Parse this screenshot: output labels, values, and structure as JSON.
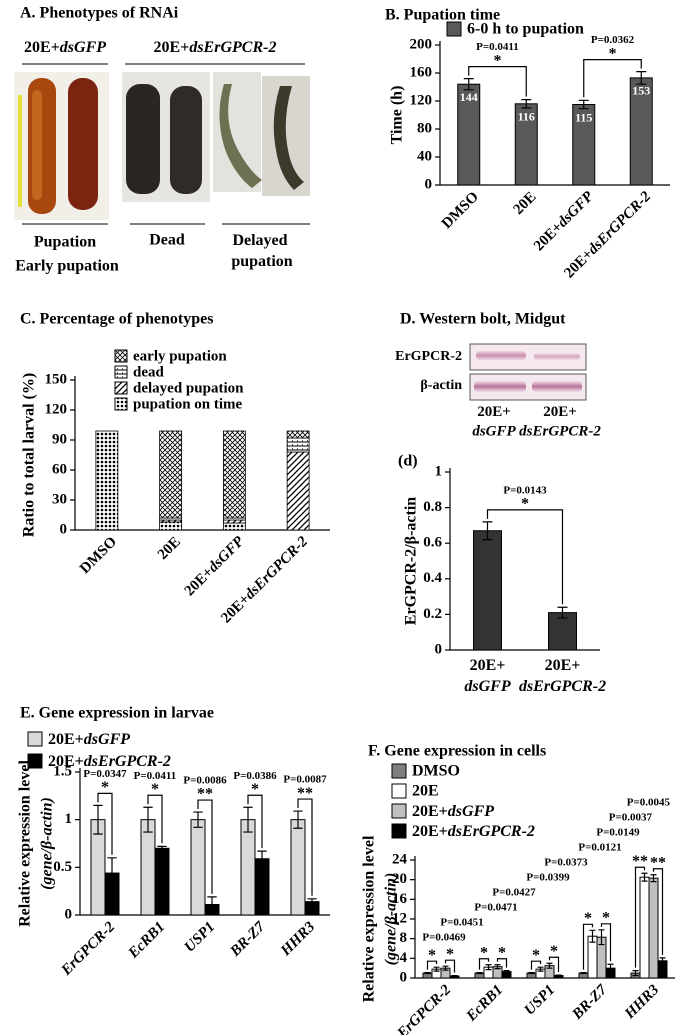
{
  "panel_a": {
    "title": "A. Phenotypes of RNAi",
    "groups": [
      "20E+dsGFP",
      "20E+dsErGPCR-2"
    ],
    "outcomes": [
      "Pupation",
      "Early pupation",
      "Dead",
      "Delayed pupation"
    ]
  },
  "panel_d_blot": {
    "title": "D. Western bolt, Midgut",
    "rows": [
      "ErGPCR-2",
      "β-actin"
    ],
    "lanes": [
      "20E+dsGFP",
      "20E+dsErGPCR-2"
    ]
  },
  "chart_data": [
    {
      "type": "bar",
      "title": "B. Pupation time",
      "ylabel": "Time (h)",
      "categories": [
        "DMSO",
        "20E",
        "20E+dsGFP",
        "20E+dsErGPCR-2"
      ],
      "series": [
        {
          "name": "6-0 h to pupation",
          "color": "#595959",
          "values": [
            144,
            116,
            115,
            153
          ],
          "errors": [
            8,
            6,
            6,
            9
          ]
        }
      ],
      "show_values": true,
      "ylim": [
        0,
        200
      ],
      "yticks": [
        0,
        40,
        80,
        120,
        160,
        200
      ],
      "comparisons": [
        {
          "p": "P=0.0411",
          "mark": "*"
        },
        {
          "p": "P=0.0362",
          "mark": "*"
        }
      ]
    },
    {
      "type": "stacked_bar",
      "title": "C. Percentage of phenotypes",
      "ylabel": "Ratio to total larval (%)",
      "categories": [
        "DMSO",
        "20E",
        "20E+dsGFP",
        "20E+dsErGPCR-2"
      ],
      "series": [
        {
          "name": "pupation on time",
          "pattern": "dots",
          "values": [
            99,
            8,
            7,
            0
          ]
        },
        {
          "name": "delayed pupation",
          "pattern": "diag",
          "values": [
            0,
            2,
            3,
            78
          ]
        },
        {
          "name": "dead",
          "pattern": "hlines",
          "values": [
            0,
            2,
            2,
            14
          ]
        },
        {
          "name": "early pupation",
          "pattern": "cross",
          "values": [
            0,
            87,
            87,
            7
          ]
        }
      ],
      "ylim": [
        0,
        150
      ],
      "yticks": [
        0,
        30,
        60,
        90,
        120,
        150
      ]
    },
    {
      "type": "bar",
      "title": "(d)",
      "ylabel": "ErGPCR-2/β-actin",
      "categories": [
        "20E+dsGFP",
        "20E+dsErGPCR-2"
      ],
      "series": [
        {
          "name": "ErGPCR-2/β-actin",
          "color": "#333333",
          "values": [
            0.67,
            0.21
          ],
          "errors": [
            0.05,
            0.03
          ]
        }
      ],
      "ylim": [
        0,
        1
      ],
      "yticks": [
        0,
        0.2,
        0.4,
        0.6,
        0.8,
        1
      ],
      "comparisons": [
        {
          "p": "P=0.0143",
          "mark": "*"
        }
      ]
    },
    {
      "type": "bar",
      "title": "E. Gene expression in larvae",
      "ylabel": [
        "Relative expression level",
        "(gene/β-actin)"
      ],
      "categories": [
        "ErGPCR-2",
        "EcRB1",
        "USP1",
        "BR-Z7",
        "HHR3"
      ],
      "italic_categories": true,
      "series": [
        {
          "name": "20E+dsGFP",
          "color": "#d9d9d9",
          "values": [
            1,
            1,
            1,
            1,
            1
          ],
          "errors": [
            0.15,
            0.13,
            0.08,
            0.13,
            0.09
          ]
        },
        {
          "name": "20E+dsErGPCR-2",
          "color": "#000000",
          "values": [
            0.44,
            0.7,
            0.11,
            0.59,
            0.14
          ],
          "errors": [
            0.16,
            0.02,
            0.08,
            0.08,
            0.03
          ]
        }
      ],
      "ylim": [
        0,
        1.5
      ],
      "yticks": [
        0,
        0.5,
        1,
        1.5
      ],
      "comparisons": [
        {
          "p": "P=0.0347",
          "mark": "*"
        },
        {
          "p": "P=0.0411",
          "mark": "*"
        },
        {
          "p": "P=0.0086",
          "mark": "**"
        },
        {
          "p": "P=0.0386",
          "mark": "*"
        },
        {
          "p": "P=0.0087",
          "mark": "**"
        }
      ]
    },
    {
      "type": "bar",
      "title": "F. Gene expression in cells",
      "ylabel": [
        "Relative expression level",
        "(gene/β-actin)"
      ],
      "categories": [
        "ErGPCR-2",
        "EcRB1",
        "USP1",
        "BR-Z7",
        "HHR3"
      ],
      "italic_categories": true,
      "series": [
        {
          "name": "DMSO",
          "color": "#7f7f7f",
          "values": [
            1,
            1,
            1,
            1,
            1
          ],
          "errors": [
            0.1,
            0.1,
            0.1,
            0.1,
            0.5
          ]
        },
        {
          "name": "20E",
          "color": "#ffffff",
          "values": [
            1.8,
            2.2,
            1.8,
            8.5,
            20.5
          ],
          "errors": [
            0.4,
            0.5,
            0.4,
            1.2,
            0.8
          ]
        },
        {
          "name": "20E+dsGFP",
          "color": "#bfbfbf",
          "values": [
            2.0,
            2.3,
            2.5,
            8.3,
            20.3
          ],
          "errors": [
            0.4,
            0.4,
            0.5,
            1.5,
            0.7
          ]
        },
        {
          "name": "20E+dsErGPCR-2",
          "color": "#000000",
          "values": [
            0.4,
            1.3,
            0.5,
            2.0,
            3.5
          ],
          "errors": [
            0.1,
            0.2,
            0.1,
            0.8,
            0.6
          ]
        }
      ],
      "ylim": [
        0,
        24
      ],
      "yticks": [
        0,
        4,
        8,
        12,
        16,
        20,
        24
      ],
      "comparisons": [
        {
          "p": "P=0.0469",
          "mark": "*"
        },
        {
          "p": "P=0.0451",
          "mark": "*"
        },
        {
          "p": "P=0.0471",
          "mark": "*"
        },
        {
          "p": "P=0.0427",
          "mark": "*"
        },
        {
          "p": "P=0.0399",
          "mark": "*"
        },
        {
          "p": "P=0.0373",
          "mark": "*"
        },
        {
          "p": "P=0.0121",
          "mark": "*"
        },
        {
          "p": "P=0.0149",
          "mark": "*"
        },
        {
          "p": "P=0.0037",
          "mark": "**"
        },
        {
          "p": "P=0.0045",
          "mark": "**"
        }
      ]
    }
  ]
}
